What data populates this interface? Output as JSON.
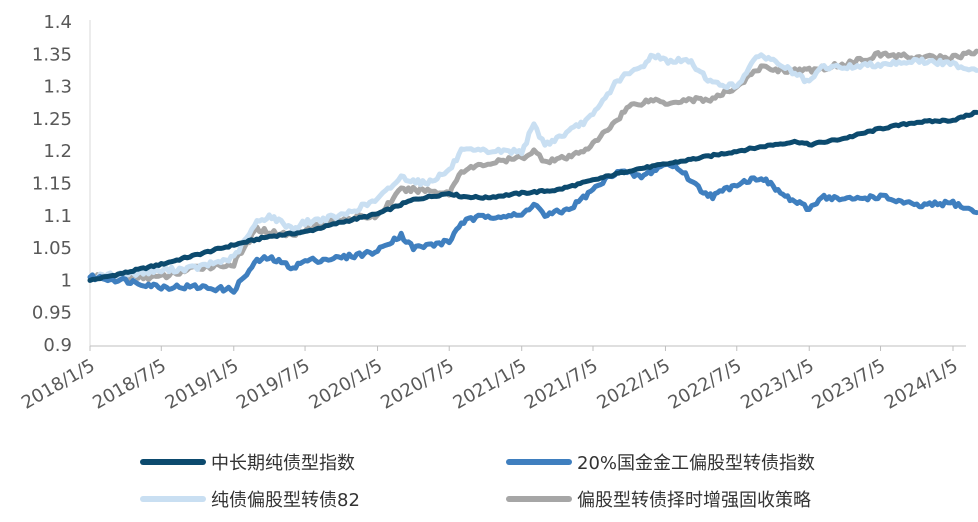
{
  "chart_data": {
    "type": "line",
    "title": "",
    "xlabel": "",
    "ylabel": "",
    "ylim": [
      0.9,
      1.4
    ],
    "y_ticks": [
      "0.9",
      "0.95",
      "1",
      "1.05",
      "1.1",
      "1.15",
      "1.2",
      "1.25",
      "1.3",
      "1.35",
      "1.4"
    ],
    "x_ticks": [
      "2018/1/5",
      "2018/7/5",
      "2019/1/5",
      "2019/7/5",
      "2020/1/5",
      "2020/7/5",
      "2021/1/5",
      "2021/7/5",
      "2022/1/5",
      "2022/7/5",
      "2023/1/5",
      "2023/7/5",
      "2024/1/5"
    ],
    "grid": false,
    "legend_position": "bottom",
    "series": [
      {
        "name": "中长期纯债型指数",
        "color": "#0c4a6e",
        "points": [
          [
            "2018/1/5",
            1.0
          ],
          [
            "2018/4/5",
            1.012
          ],
          [
            "2018/7/5",
            1.025
          ],
          [
            "2018/10/5",
            1.04
          ],
          [
            "2019/1/5",
            1.055
          ],
          [
            "2019/4/5",
            1.068
          ],
          [
            "2019/7/5",
            1.075
          ],
          [
            "2019/10/5",
            1.09
          ],
          [
            "2020/1/5",
            1.103
          ],
          [
            "2020/4/5",
            1.125
          ],
          [
            "2020/7/5",
            1.135
          ],
          [
            "2020/8/5",
            1.13
          ],
          [
            "2020/10/5",
            1.128
          ],
          [
            "2021/1/5",
            1.135
          ],
          [
            "2021/4/5",
            1.14
          ],
          [
            "2021/7/5",
            1.155
          ],
          [
            "2021/10/5",
            1.17
          ],
          [
            "2022/1/5",
            1.18
          ],
          [
            "2022/4/5",
            1.19
          ],
          [
            "2022/7/5",
            1.2
          ],
          [
            "2022/10/5",
            1.21
          ],
          [
            "2022/12/5",
            1.215
          ],
          [
            "2023/1/5",
            1.21
          ],
          [
            "2023/4/5",
            1.22
          ],
          [
            "2023/7/5",
            1.235
          ],
          [
            "2023/10/5",
            1.245
          ],
          [
            "2024/1/5",
            1.248
          ],
          [
            "2024/3/5",
            1.26
          ]
        ]
      },
      {
        "name": "20%国金金工偏股型转债指数",
        "color": "#3f7fbf",
        "points": [
          [
            "2018/1/5",
            1.005
          ],
          [
            "2018/4/5",
            1.0
          ],
          [
            "2018/7/5",
            0.99
          ],
          [
            "2018/10/5",
            0.99
          ],
          [
            "2019/1/5",
            0.985
          ],
          [
            "2019/3/5",
            1.03
          ],
          [
            "2019/4/5",
            1.035
          ],
          [
            "2019/6/5",
            1.02
          ],
          [
            "2019/7/5",
            1.03
          ],
          [
            "2019/10/5",
            1.035
          ],
          [
            "2020/1/5",
            1.045
          ],
          [
            "2020/2/5",
            1.06
          ],
          [
            "2020/3/5",
            1.07
          ],
          [
            "2020/4/5",
            1.05
          ],
          [
            "2020/7/5",
            1.06
          ],
          [
            "2020/8/5",
            1.09
          ],
          [
            "2020/10/5",
            1.1
          ],
          [
            "2021/1/5",
            1.1
          ],
          [
            "2021/2/5",
            1.12
          ],
          [
            "2021/3/5",
            1.1
          ],
          [
            "2021/5/5",
            1.11
          ],
          [
            "2021/7/5",
            1.14
          ],
          [
            "2021/9/5",
            1.17
          ],
          [
            "2021/11/5",
            1.16
          ],
          [
            "2022/1/5",
            1.18
          ],
          [
            "2022/2/5",
            1.175
          ],
          [
            "2022/4/5",
            1.14
          ],
          [
            "2022/5/5",
            1.13
          ],
          [
            "2022/7/5",
            1.15
          ],
          [
            "2022/9/5",
            1.16
          ],
          [
            "2022/11/5",
            1.13
          ],
          [
            "2023/1/5",
            1.11
          ],
          [
            "2023/2/5",
            1.13
          ],
          [
            "2023/4/5",
            1.125
          ],
          [
            "2023/7/5",
            1.13
          ],
          [
            "2023/10/5",
            1.115
          ],
          [
            "2024/1/5",
            1.12
          ],
          [
            "2024/3/5",
            1.105
          ]
        ]
      },
      {
        "name": "纯债偏股型转债82",
        "color": "#c9dff2",
        "points": [
          [
            "2018/1/5",
            1.005
          ],
          [
            "2018/4/5",
            1.01
          ],
          [
            "2018/7/5",
            1.015
          ],
          [
            "2018/10/5",
            1.02
          ],
          [
            "2019/1/5",
            1.035
          ],
          [
            "2019/3/5",
            1.09
          ],
          [
            "2019/4/5",
            1.1
          ],
          [
            "2019/6/5",
            1.08
          ],
          [
            "2019/7/5",
            1.09
          ],
          [
            "2019/10/5",
            1.1
          ],
          [
            "2020/1/5",
            1.125
          ],
          [
            "2020/3/5",
            1.16
          ],
          [
            "2020/5/5",
            1.15
          ],
          [
            "2020/7/5",
            1.17
          ],
          [
            "2020/8/5",
            1.2
          ],
          [
            "2020/10/5",
            1.2
          ],
          [
            "2021/1/5",
            1.2
          ],
          [
            "2021/2/5",
            1.24
          ],
          [
            "2021/3/5",
            1.21
          ],
          [
            "2021/5/5",
            1.23
          ],
          [
            "2021/7/5",
            1.255
          ],
          [
            "2021/9/5",
            1.31
          ],
          [
            "2021/11/5",
            1.33
          ],
          [
            "2021/12/5",
            1.35
          ],
          [
            "2022/1/5",
            1.34
          ],
          [
            "2022/3/5",
            1.34
          ],
          [
            "2022/5/5",
            1.305
          ],
          [
            "2022/7/5",
            1.3
          ],
          [
            "2022/8/5",
            1.33
          ],
          [
            "2022/9/5",
            1.35
          ],
          [
            "2022/11/5",
            1.33
          ],
          [
            "2023/1/5",
            1.305
          ],
          [
            "2023/2/5",
            1.33
          ],
          [
            "2023/4/5",
            1.33
          ],
          [
            "2023/7/5",
            1.335
          ],
          [
            "2023/10/5",
            1.34
          ],
          [
            "2024/1/5",
            1.335
          ],
          [
            "2024/3/5",
            1.325
          ]
        ]
      },
      {
        "name": "偏股型转债择时增强固收策略",
        "color": "#a6a6a6",
        "points": [
          [
            "2018/1/5",
            1.005
          ],
          [
            "2018/4/5",
            1.005
          ],
          [
            "2018/7/5",
            1.005
          ],
          [
            "2018/10/5",
            1.02
          ],
          [
            "2019/1/5",
            1.025
          ],
          [
            "2019/3/5",
            1.08
          ],
          [
            "2019/4/5",
            1.075
          ],
          [
            "2019/6/5",
            1.07
          ],
          [
            "2019/7/5",
            1.08
          ],
          [
            "2019/10/5",
            1.095
          ],
          [
            "2020/1/5",
            1.1
          ],
          [
            "2020/3/5",
            1.14
          ],
          [
            "2020/5/5",
            1.14
          ],
          [
            "2020/7/5",
            1.135
          ],
          [
            "2020/8/5",
            1.17
          ],
          [
            "2020/10/5",
            1.18
          ],
          [
            "2021/1/5",
            1.19
          ],
          [
            "2021/2/5",
            1.2
          ],
          [
            "2021/3/5",
            1.185
          ],
          [
            "2021/5/5",
            1.19
          ],
          [
            "2021/7/5",
            1.21
          ],
          [
            "2021/9/5",
            1.25
          ],
          [
            "2021/10/5",
            1.27
          ],
          [
            "2021/12/5",
            1.28
          ],
          [
            "2022/1/5",
            1.275
          ],
          [
            "2022/3/5",
            1.28
          ],
          [
            "2022/5/5",
            1.28
          ],
          [
            "2022/7/5",
            1.3
          ],
          [
            "2022/9/5",
            1.33
          ],
          [
            "2022/11/5",
            1.325
          ],
          [
            "2023/1/5",
            1.325
          ],
          [
            "2023/4/5",
            1.335
          ],
          [
            "2023/7/5",
            1.35
          ],
          [
            "2023/10/5",
            1.345
          ],
          [
            "2024/1/5",
            1.345
          ],
          [
            "2024/3/5",
            1.355
          ]
        ]
      }
    ]
  }
}
